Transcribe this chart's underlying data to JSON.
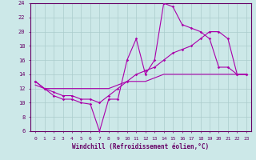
{
  "xlabel": "Windchill (Refroidissement éolien,°C)",
  "bg_color": "#cce8e8",
  "line_color": "#aa00aa",
  "grid_color": "#aacccc",
  "axis_color": "#660066",
  "xmin": -0.5,
  "xmax": 23.5,
  "ymin": 6,
  "ymax": 24,
  "yticks": [
    6,
    8,
    10,
    12,
    14,
    16,
    18,
    20,
    22,
    24
  ],
  "xticks": [
    0,
    1,
    2,
    3,
    4,
    5,
    6,
    7,
    8,
    9,
    10,
    11,
    12,
    13,
    14,
    15,
    16,
    17,
    18,
    19,
    20,
    21,
    22,
    23
  ],
  "line1_x": [
    0,
    1,
    2,
    3,
    4,
    5,
    6,
    7,
    8,
    9,
    10,
    11,
    12,
    13,
    14,
    15,
    16,
    17,
    18,
    19,
    20,
    21,
    22,
    23
  ],
  "line1_y": [
    13,
    12,
    11,
    10.5,
    10.5,
    10,
    9.8,
    6,
    10.5,
    10.5,
    16,
    19,
    14,
    16,
    24,
    23.5,
    21,
    20.5,
    20,
    19,
    15,
    15,
    14,
    14
  ],
  "line2_x": [
    0,
    1,
    2,
    3,
    4,
    5,
    6,
    7,
    8,
    9,
    10,
    11,
    12,
    13,
    14,
    15,
    16,
    17,
    18,
    19,
    20,
    21,
    22,
    23
  ],
  "line2_y": [
    13,
    12,
    11.5,
    11,
    11,
    10.5,
    10.5,
    10,
    11,
    12,
    13,
    14,
    14.5,
    15,
    16,
    17,
    17.5,
    18,
    19,
    20,
    20,
    19,
    14,
    14
  ],
  "line3_x": [
    0,
    1,
    2,
    3,
    4,
    5,
    6,
    7,
    8,
    9,
    10,
    11,
    12,
    13,
    14,
    15,
    16,
    17,
    18,
    19,
    20,
    21,
    22,
    23
  ],
  "line3_y": [
    12.5,
    12,
    12,
    12,
    12,
    12,
    12,
    12,
    12,
    12.5,
    13,
    13,
    13,
    13.5,
    14,
    14,
    14,
    14,
    14,
    14,
    14,
    14,
    14,
    14
  ]
}
